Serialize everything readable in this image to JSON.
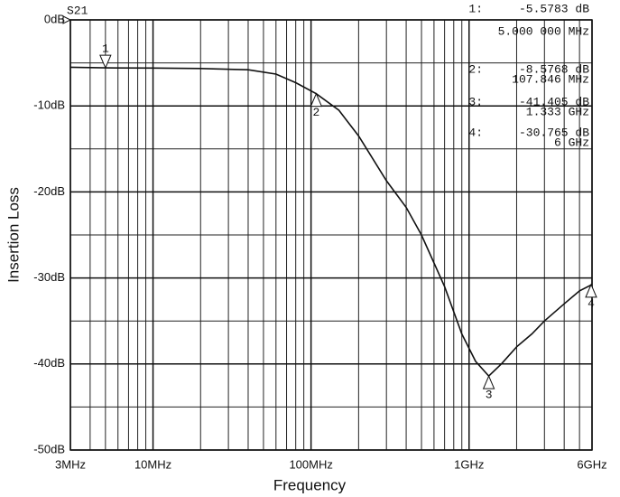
{
  "chart_data": {
    "type": "line",
    "trace_label": "S21",
    "xlabel": "Frequency",
    "ylabel": "Insertion Loss",
    "xscale": "log",
    "grid": true,
    "color": "#111111",
    "xlim": [
      3000000,
      6000000000
    ],
    "ylim": [
      -50,
      0
    ],
    "xticks": [
      {
        "value": 3000000,
        "label": "3MHz"
      },
      {
        "value": 10000000,
        "label": "10MHz"
      },
      {
        "value": 100000000,
        "label": "100MHz"
      },
      {
        "value": 1000000000,
        "label": "1GHz"
      },
      {
        "value": 6000000000,
        "label": "6GHz"
      }
    ],
    "xminor": [
      4000000,
      5000000,
      6000000,
      7000000,
      8000000,
      9000000,
      20000000,
      30000000,
      40000000,
      50000000,
      60000000,
      70000000,
      80000000,
      90000000,
      200000000,
      300000000,
      400000000,
      500000000,
      600000000,
      700000000,
      800000000,
      900000000,
      2000000000,
      3000000000,
      4000000000,
      5000000000
    ],
    "yticks": [
      {
        "value": 0,
        "label": "0dB"
      },
      {
        "value": -10,
        "label": "-10dB"
      },
      {
        "value": -20,
        "label": "-20dB"
      },
      {
        "value": -30,
        "label": "-30dB"
      },
      {
        "value": -40,
        "label": "-40dB"
      },
      {
        "value": -50,
        "label": "-50dB"
      }
    ],
    "yminor": [
      -5,
      -15,
      -25,
      -35,
      -45
    ],
    "x": [
      3000000,
      5000000,
      10000000,
      20000000,
      40000000,
      60000000,
      80000000,
      107846000,
      150000000,
      200000000,
      300000000,
      400000000,
      500000000,
      700000000,
      900000000,
      1100000000,
      1333000000,
      1600000000,
      2000000000,
      2500000000,
      3000000000,
      4000000000,
      5000000000,
      6000000000
    ],
    "values": [
      -5.5,
      -5.58,
      -5.6,
      -5.65,
      -5.8,
      -6.3,
      -7.3,
      -8.58,
      -10.5,
      -13.5,
      -18.7,
      -21.8,
      -25,
      -31,
      -36.5,
      -39.7,
      -41.4,
      -40,
      -38,
      -36.5,
      -35,
      -33,
      -31.5,
      -30.77
    ],
    "markers": [
      {
        "name": "1",
        "readout_name": "1:",
        "x": 5000000,
        "y": -5.5783,
        "y_label": "-5.5783 dB",
        "x_label": "5.000 000 MHz"
      },
      {
        "name": "2",
        "readout_name": "2:",
        "x": 107846000,
        "y": -8.5768,
        "y_label": "-8.5768 dB",
        "x_label": "107.846 MHz"
      },
      {
        "name": "3",
        "readout_name": "3:",
        "x": 1333000000,
        "y": -41.405,
        "y_label": "-41.405 dB",
        "x_label": "1.333 GHz"
      },
      {
        "name": "4",
        "readout_name": "4:",
        "x": 6000000000,
        "y": -30.765,
        "y_label": "-30.765 dB",
        "x_label": "6 GHz"
      }
    ]
  }
}
